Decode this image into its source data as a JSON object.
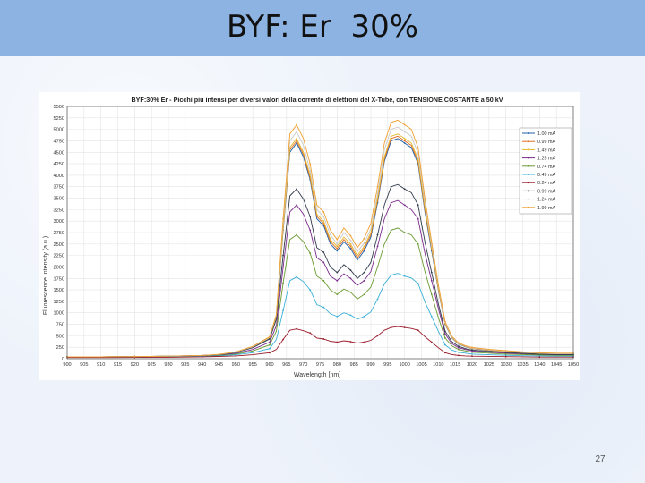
{
  "slide": {
    "title": "BYF: Er  30%",
    "page_number": "27"
  },
  "chart_data": {
    "type": "line",
    "title": "BYF:30% Er - Picchi più intensi per diversi valori della corrente di elettroni del X-Tube, con TENSIONE COSTANTE a 50 kV",
    "xlabel": "Wavelength [nm]",
    "ylabel": "Fluorescence Intensity (a.u.)",
    "xlim": [
      900,
      1050
    ],
    "ylim": [
      0,
      5500
    ],
    "xticks": [
      900,
      905,
      910,
      915,
      920,
      925,
      930,
      935,
      940,
      945,
      950,
      955,
      960,
      965,
      970,
      975,
      980,
      985,
      990,
      995,
      1000,
      1005,
      1010,
      1015,
      1020,
      1025,
      1030,
      1035,
      1040,
      1045,
      1050
    ],
    "yticks": [
      0,
      250,
      500,
      750,
      1000,
      1250,
      1500,
      1750,
      2000,
      2250,
      2500,
      2750,
      3000,
      3250,
      3500,
      3750,
      4000,
      4250,
      4500,
      4750,
      5000,
      5250,
      5500
    ],
    "grid": true,
    "legend_position": "top-right",
    "x": [
      900,
      910,
      920,
      930,
      940,
      945,
      950,
      955,
      960,
      962,
      964,
      966,
      968,
      970,
      972,
      974,
      976,
      978,
      980,
      982,
      984,
      986,
      988,
      990,
      992,
      994,
      996,
      998,
      1000,
      1002,
      1004,
      1006,
      1008,
      1010,
      1012,
      1014,
      1016,
      1018,
      1020,
      1025,
      1030,
      1035,
      1040,
      1045,
      1050
    ],
    "series": [
      {
        "name": "1.00 mA",
        "color": "#1f5fa8",
        "values": [
          40,
          40,
          45,
          55,
          70,
          90,
          140,
          250,
          450,
          900,
          2800,
          4500,
          4700,
          4400,
          3900,
          3050,
          2900,
          2500,
          2350,
          2550,
          2400,
          2150,
          2350,
          2650,
          3400,
          4300,
          4750,
          4800,
          4700,
          4600,
          4250,
          3200,
          2350,
          1500,
          750,
          450,
          320,
          260,
          220,
          180,
          150,
          130,
          110,
          100,
          100
        ]
      },
      {
        "name": "0.99 mA",
        "color": "#e07020",
        "values": [
          40,
          40,
          45,
          55,
          70,
          90,
          140,
          255,
          460,
          920,
          2850,
          4550,
          4750,
          4450,
          3950,
          3100,
          2950,
          2550,
          2400,
          2600,
          2450,
          2200,
          2400,
          2700,
          3450,
          4350,
          4800,
          4850,
          4750,
          4650,
          4300,
          3250,
          2400,
          1520,
          760,
          460,
          325,
          265,
          225,
          185,
          155,
          130,
          110,
          100,
          100
        ]
      },
      {
        "name": "1.49 mA",
        "color": "#e6b830",
        "values": [
          40,
          40,
          45,
          55,
          70,
          90,
          140,
          255,
          460,
          920,
          2850,
          4600,
          4800,
          4500,
          4000,
          3150,
          3000,
          2600,
          2450,
          2650,
          2500,
          2250,
          2450,
          2750,
          3500,
          4400,
          4850,
          4900,
          4800,
          4700,
          4350,
          3300,
          2420,
          1540,
          770,
          465,
          330,
          270,
          230,
          190,
          160,
          135,
          115,
          105,
          105
        ]
      },
      {
        "name": "1.25 mA",
        "color": "#7a2a8a",
        "values": [
          40,
          40,
          45,
          50,
          60,
          80,
          115,
          200,
          360,
          720,
          2000,
          3200,
          3350,
          3150,
          2800,
          2200,
          2100,
          1800,
          1700,
          1850,
          1750,
          1600,
          1700,
          1900,
          2450,
          3050,
          3400,
          3450,
          3350,
          3250,
          3050,
          2300,
          1700,
          1100,
          540,
          330,
          240,
          200,
          170,
          140,
          120,
          100,
          90,
          80,
          80
        ]
      },
      {
        "name": "0.74 mA",
        "color": "#6a9a30",
        "values": [
          35,
          35,
          40,
          45,
          55,
          70,
          100,
          170,
          300,
          600,
          1650,
          2600,
          2700,
          2550,
          2300,
          1800,
          1700,
          1500,
          1400,
          1520,
          1450,
          1300,
          1400,
          1560,
          2000,
          2500,
          2800,
          2850,
          2750,
          2700,
          2500,
          1900,
          1400,
          900,
          450,
          280,
          200,
          170,
          140,
          120,
          100,
          90,
          80,
          70,
          70
        ]
      },
      {
        "name": "0.49 mA",
        "color": "#3ab0d8",
        "values": [
          30,
          30,
          35,
          40,
          50,
          60,
          85,
          130,
          220,
          420,
          1050,
          1700,
          1780,
          1680,
          1500,
          1180,
          1120,
          980,
          920,
          1000,
          950,
          860,
          920,
          1020,
          1300,
          1630,
          1820,
          1860,
          1800,
          1760,
          1640,
          1240,
          920,
          600,
          300,
          190,
          140,
          120,
          100,
          85,
          75,
          65,
          60,
          55,
          55
        ]
      },
      {
        "name": "0.24 mA",
        "color": "#9a1a2a",
        "values": [
          25,
          25,
          28,
          32,
          40,
          48,
          60,
          85,
          130,
          200,
          420,
          620,
          650,
          610,
          560,
          450,
          430,
          380,
          360,
          390,
          370,
          340,
          360,
          400,
          500,
          620,
          680,
          700,
          680,
          660,
          620,
          480,
          360,
          240,
          130,
          90,
          70,
          60,
          55,
          50,
          45,
          40,
          35,
          35,
          35
        ]
      },
      {
        "name": "0.99 mA",
        "color": "#303a4a",
        "values": [
          40,
          40,
          45,
          55,
          68,
          88,
          135,
          240,
          430,
          860,
          2250,
          3550,
          3700,
          3480,
          3100,
          2420,
          2320,
          2000,
          1880,
          2050,
          1930,
          1750,
          1880,
          2100,
          2700,
          3350,
          3750,
          3800,
          3700,
          3620,
          3350,
          2550,
          1880,
          1200,
          600,
          370,
          270,
          220,
          190,
          160,
          135,
          115,
          100,
          90,
          90
        ]
      },
      {
        "name": "1.24 mA",
        "color": "#c8c8c8",
        "values": [
          40,
          40,
          45,
          55,
          70,
          92,
          145,
          260,
          470,
          940,
          2950,
          4750,
          4950,
          4650,
          4100,
          3250,
          3100,
          2700,
          2500,
          2750,
          2580,
          2330,
          2520,
          2830,
          3600,
          4550,
          5000,
          5050,
          4950,
          4850,
          4480,
          3400,
          2480,
          1580,
          790,
          475,
          335,
          275,
          235,
          195,
          165,
          140,
          120,
          110,
          110
        ]
      },
      {
        "name": "1.99 mA",
        "color": "#f0a030",
        "values": [
          40,
          40,
          45,
          55,
          70,
          95,
          150,
          270,
          480,
          960,
          3050,
          4900,
          5100,
          4800,
          4250,
          3350,
          3200,
          2800,
          2600,
          2850,
          2680,
          2420,
          2620,
          2950,
          3750,
          4700,
          5150,
          5200,
          5100,
          5000,
          4600,
          3500,
          2550,
          1620,
          810,
          490,
          345,
          285,
          245,
          205,
          175,
          150,
          130,
          120,
          120
        ]
      }
    ]
  }
}
